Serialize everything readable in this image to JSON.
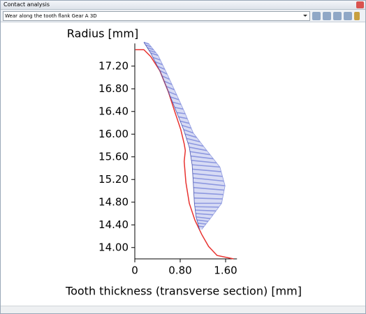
{
  "window": {
    "title": "Contact analysis"
  },
  "toolbar": {
    "view": "Wear along the tooth flank Gear A 3D"
  },
  "chart_data": {
    "type": "line",
    "xlabel": "Tooth thickness (transverse section) [mm]",
    "ylabel": "Radius [mm]",
    "xlim": [
      0,
      1.8
    ],
    "ylim": [
      13.8,
      17.6
    ],
    "xticks": [
      0,
      {
        "value": 0.8,
        "label": "0.80"
      },
      {
        "value": 1.6,
        "label": "1.60"
      }
    ],
    "yticks": [
      {
        "value": 14,
        "label": "14.00"
      },
      {
        "value": 14.4,
        "label": "14.40"
      },
      {
        "value": 14.8,
        "label": "14.80"
      },
      {
        "value": 15.2,
        "label": "15.20"
      },
      {
        "value": 15.6,
        "label": "15.60"
      },
      {
        "value": 16,
        "label": "16.00"
      },
      {
        "value": 16.4,
        "label": "16.40"
      },
      {
        "value": 16.8,
        "label": "16.80"
      },
      {
        "value": 17.2,
        "label": "17.20"
      }
    ],
    "series": [
      {
        "color": "#e8322f",
        "x": [
          0.01,
          0.16,
          0.28,
          0.44,
          0.59,
          0.71,
          0.81,
          0.87,
          0.89,
          0.87,
          0.9,
          0.96,
          1.06,
          1.18,
          1.3,
          1.45,
          1.74
        ],
        "values": [
          17.49,
          17.49,
          17.37,
          17.12,
          16.75,
          16.38,
          16.08,
          15.83,
          15.71,
          15.52,
          15.15,
          14.78,
          14.48,
          14.23,
          14.02,
          13.86,
          13.8
        ]
      },
      {
        "color": "#4a55b0",
        "x": [
          0.16,
          0.28,
          0.44,
          0.59,
          0.74,
          0.86,
          0.96,
          1.01,
          1.03,
          1.05,
          1.08,
          1.14
        ],
        "values": [
          17.62,
          17.43,
          17.12,
          16.75,
          16.38,
          16.08,
          15.77,
          15.46,
          15.15,
          14.78,
          14.54,
          14.32
        ]
      },
      {
        "color": "#8d98e0",
        "x": [
          0.25,
          0.41,
          0.57,
          0.74,
          0.89,
          1.03,
          1.27,
          1.5,
          1.59,
          1.53,
          1.33,
          1.18
        ],
        "values": [
          17.59,
          17.39,
          17.06,
          16.69,
          16.36,
          16.02,
          15.71,
          15.42,
          15.09,
          14.78,
          14.51,
          14.32
        ]
      }
    ]
  }
}
